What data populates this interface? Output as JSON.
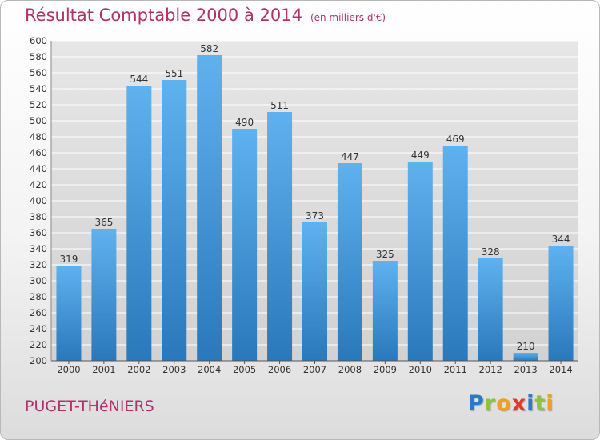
{
  "chart_data": {
    "type": "bar",
    "title": "Résultat Comptable 2000 à 2014",
    "unit_label": "(en milliers d'€)",
    "categories": [
      "2000",
      "2001",
      "2002",
      "2003",
      "2004",
      "2005",
      "2006",
      "2007",
      "2008",
      "2009",
      "2010",
      "2011",
      "2012",
      "2013",
      "2014"
    ],
    "values": [
      319,
      365,
      544,
      551,
      582,
      490,
      511,
      373,
      447,
      325,
      449,
      469,
      328,
      210,
      344
    ],
    "ylim": [
      200,
      600
    ],
    "ytick_step": 20,
    "grid": true,
    "bar_color": "#4a9ee0",
    "xlabel": "",
    "ylabel": ""
  },
  "footer": {
    "commune": "PUGET-THéNIERS",
    "brand_letters": [
      {
        "char": "P",
        "color": "#2e78c8"
      },
      {
        "char": "r",
        "color": "#8cc43c"
      },
      {
        "char": "o",
        "color": "#f0a020"
      },
      {
        "char": "x",
        "color": "#e03a2a"
      },
      {
        "char": "i",
        "color": "#2e78c8"
      },
      {
        "char": "t",
        "color": "#8cc43c"
      },
      {
        "char": "i",
        "color": "#f0a020"
      }
    ]
  },
  "colors": {
    "accent": "#b0316b",
    "grid": "#ffffff",
    "plot_bg": "#dcdcdc"
  }
}
